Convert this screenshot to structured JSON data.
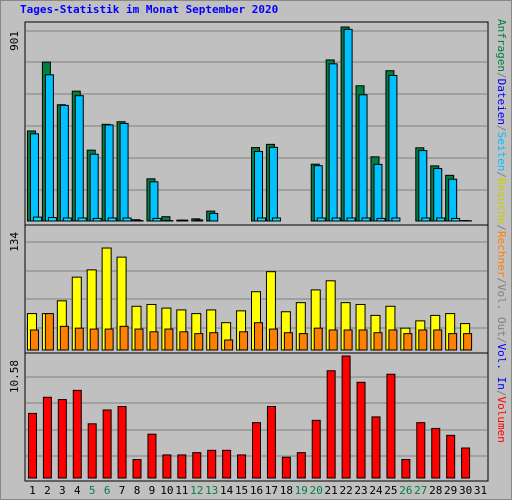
{
  "title": "Tages-Statistik im Monat September 2020",
  "colors": {
    "anfragen": "#008040",
    "dateien": "#00C0FF",
    "seiten": "#00E0FF",
    "besuche": "#FFFF00",
    "rechner": "#FF8000",
    "vol_out": "#CC2200",
    "volumen": "#FF0000",
    "weekday_label": "#000000",
    "weekend_label": "#008040",
    "legend_blue": "#0000FF",
    "legend_grey": "#808080"
  },
  "legend": {
    "right": [
      {
        "text": "Anfragen",
        "color": "#008040"
      },
      {
        "text": "/",
        "color": "#808080"
      },
      {
        "text": "Dateien",
        "color": "#0000FF"
      },
      {
        "text": "/",
        "color": "#808080"
      },
      {
        "text": "Seiten",
        "color": "#00C0FF"
      },
      {
        "text": "/",
        "color": "#808080"
      },
      {
        "text": "Besuche",
        "color": "#CCCC00"
      },
      {
        "text": "/",
        "color": "#808080"
      },
      {
        "text": "Rechner",
        "color": "#FF8000"
      },
      {
        "text": "/",
        "color": "#808080"
      },
      {
        "text": "Vol. Out",
        "color": "#808080"
      },
      {
        "text": "/",
        "color": "#808080"
      },
      {
        "text": "Vol. In",
        "color": "#0000FF"
      },
      {
        "text": "/",
        "color": "#808080"
      },
      {
        "text": "Volumen",
        "color": "#FF0000"
      }
    ]
  },
  "chart_data": [
    {
      "type": "bar",
      "name": "hits-files-pages",
      "ymax_label": "901",
      "ymax": 901,
      "categories": [
        "1",
        "2",
        "3",
        "4",
        "5",
        "6",
        "7",
        "8",
        "9",
        "10",
        "11",
        "12",
        "13",
        "14",
        "15",
        "16",
        "17",
        "18",
        "19",
        "20",
        "21",
        "22",
        "23",
        "24",
        "25",
        "26",
        "27",
        "28",
        "29",
        "30",
        "31"
      ],
      "weekend_days": [
        5,
        6,
        12,
        13,
        19,
        20,
        26,
        27
      ],
      "series": [
        {
          "name": "Anfragen",
          "values": [
            418,
            738,
            540,
            603,
            329,
            449,
            461,
            6,
            196,
            20,
            4,
            10,
            46,
            0,
            0,
            341,
            356,
            0,
            0,
            264,
            748,
            901,
            628,
            298,
            698,
            0,
            340,
            256,
            212,
            2,
            null
          ]
        },
        {
          "name": "Dateien",
          "values": [
            405,
            679,
            537,
            582,
            310,
            446,
            453,
            2,
            182,
            2,
            4,
            5,
            35,
            0,
            0,
            323,
            342,
            0,
            0,
            257,
            730,
            890,
            586,
            263,
            676,
            0,
            327,
            244,
            194,
            1,
            null
          ]
        },
        {
          "name": "Seiten",
          "values": [
            18,
            16,
            14,
            14,
            12,
            14,
            14,
            0,
            12,
            0,
            0,
            0,
            0,
            0,
            0,
            14,
            14,
            0,
            0,
            14,
            14,
            14,
            14,
            12,
            14,
            0,
            14,
            14,
            12,
            0,
            null
          ]
        }
      ]
    },
    {
      "type": "bar",
      "name": "visits-hosts",
      "ymax_label": "134",
      "ymax": 134,
      "categories": [
        "1",
        "2",
        "3",
        "4",
        "5",
        "6",
        "7",
        "8",
        "9",
        "10",
        "11",
        "12",
        "13",
        "14",
        "15",
        "16",
        "17",
        "18",
        "19",
        "20",
        "21",
        "22",
        "23",
        "24",
        "25",
        "26",
        "27",
        "28",
        "29",
        "30",
        "31"
      ],
      "series": [
        {
          "name": "Besuche",
          "values": [
            40,
            40,
            54,
            80,
            88,
            112,
            102,
            48,
            50,
            46,
            44,
            40,
            44,
            30,
            43,
            64,
            86,
            42,
            52,
            66,
            76,
            52,
            50,
            38,
            48,
            24,
            32,
            38,
            40,
            29,
            null
          ]
        },
        {
          "name": "Rechner",
          "values": [
            22,
            40,
            26,
            24,
            23,
            23,
            26,
            23,
            20,
            23,
            20,
            18,
            19,
            11,
            20,
            30,
            23,
            19,
            18,
            24,
            22,
            22,
            22,
            19,
            22,
            18,
            22,
            22,
            18,
            18,
            null
          ]
        }
      ]
    },
    {
      "type": "bar",
      "name": "volume",
      "ymax_label": "10.58",
      "ymax": 10.58,
      "categories": [
        "1",
        "2",
        "3",
        "4",
        "5",
        "6",
        "7",
        "8",
        "9",
        "10",
        "11",
        "12",
        "13",
        "14",
        "15",
        "16",
        "17",
        "18",
        "19",
        "20",
        "21",
        "22",
        "23",
        "24",
        "25",
        "26",
        "27",
        "28",
        "29",
        "30",
        "31"
      ],
      "series": [
        {
          "name": "Volumen",
          "values": [
            5.6,
            7.0,
            6.8,
            7.6,
            4.7,
            5.9,
            6.2,
            1.6,
            3.8,
            2.0,
            2.0,
            2.2,
            2.4,
            2.4,
            2.0,
            4.8,
            6.2,
            1.8,
            2.2,
            5.0,
            9.3,
            10.58,
            8.3,
            5.3,
            9.0,
            1.6,
            4.8,
            4.3,
            3.7,
            2.6,
            null
          ]
        }
      ]
    }
  ]
}
